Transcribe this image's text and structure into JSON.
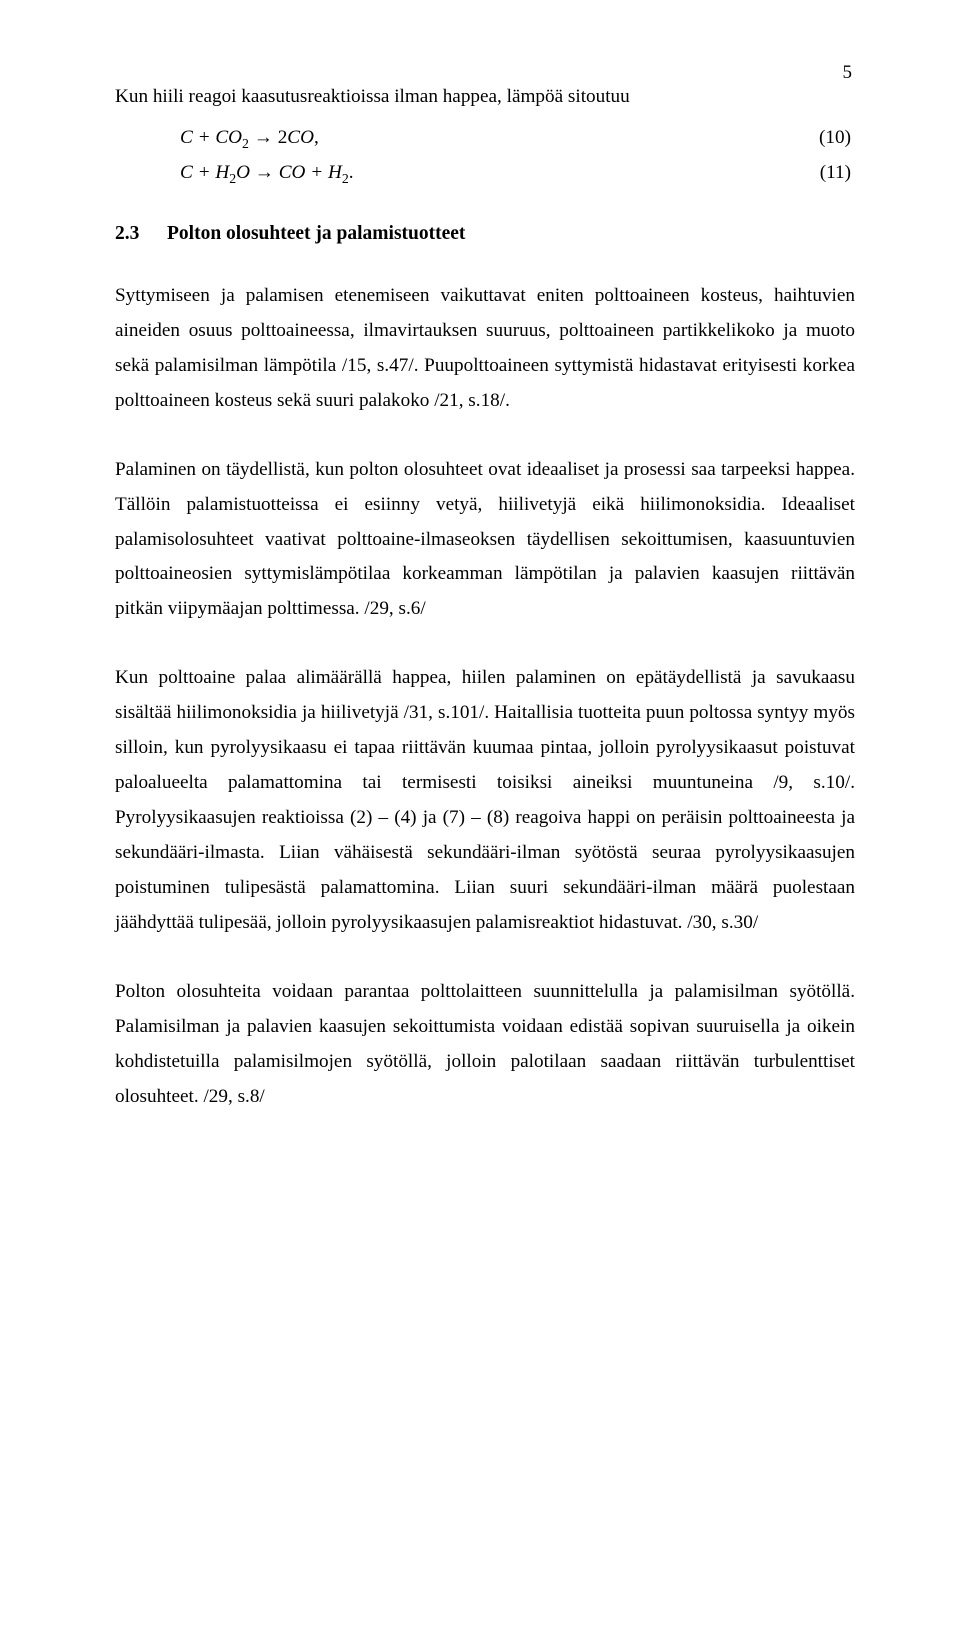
{
  "page_number": "5",
  "typography": {
    "font_family": "Times New Roman",
    "body_fontsize_pt": 14.5,
    "line_height": 1.82,
    "text_color": "#000000",
    "background_color": "#ffffff",
    "alignment": "justify"
  },
  "intro_line": "Kun hiili reagoi kaasutusreaktioissa ilman happea, lämpöä sitoutuu",
  "equations": [
    {
      "lhs": "C + CO",
      "lhs_sub": "2",
      "arrow": " → ",
      "rhs": "2CO,",
      "num": "(10)"
    },
    {
      "lhs": "C + H",
      "lhs_sub": "2",
      "mid": "O → CO + H",
      "mid_sub": "2",
      "tail": ".",
      "num": "(11)"
    }
  ],
  "heading": {
    "num": "2.3",
    "text": "Polton olosuhteet ja palamistuotteet"
  },
  "paragraphs": {
    "p1": "Syttymiseen ja palamisen etenemiseen vaikuttavat eniten polttoaineen kosteus, haihtuvien aineiden osuus polttoaineessa, ilmavirtauksen suuruus, polttoaineen partikkelikoko ja muoto sekä palamisilman lämpötila /15, s.47/. Puupolttoaineen syttymistä hidastavat erityisesti korkea polttoaineen kosteus sekä suuri palakoko /21, s.18/.",
    "p2": "Palaminen on täydellistä, kun polton olosuhteet ovat ideaaliset ja prosessi saa tarpeeksi happea. Tällöin palamistuotteissa ei esiinny vetyä, hiilivetyjä eikä hiilimonoksidia. Ideaaliset palamisolosuhteet vaativat polttoaine-ilmaseoksen täydellisen sekoittumisen, kaasuuntuvien polttoaineosien syttymislämpötilaa korkeamman lämpötilan ja palavien kaasujen riittävän pitkän viipymäajan polttimessa. /29, s.6/",
    "p3": "Kun polttoaine palaa alimäärällä happea, hiilen palaminen on epätäydellistä ja savukaasu sisältää hiilimonoksidia ja hiilivetyjä /31, s.101/. Haitallisia tuotteita puun poltossa syntyy myös silloin, kun pyrolyysikaasu ei tapaa riittävän kuumaa pintaa, jolloin pyrolyysikaasut poistuvat paloalueelta palamattomina tai termisesti toisiksi aineiksi muuntuneina /9, s.10/. Pyrolyysikaasujen reaktioissa (2) – (4) ja (7) – (8) reagoiva happi on peräisin polttoaineesta ja sekundääri-ilmasta. Liian vähäisestä sekundääri-ilman syötöstä seuraa pyrolyysikaasujen poistuminen tulipesästä palamattomina. Liian suuri sekundääri-ilman määrä puolestaan jäähdyttää tulipesää, jolloin pyrolyysikaasujen palamisreaktiot hidastuvat. /30, s.30/",
    "p4": "Polton olosuhteita voidaan parantaa polttolaitteen suunnittelulla ja palamisilman syötöllä. Palamisilman ja palavien kaasujen sekoittumista voidaan edistää sopivan suuruisella ja oikein kohdistetuilla palamisilmojen syötöllä, jolloin palotilaan saadaan riittävän turbulenttiset olosuhteet. /29, s.8/"
  }
}
